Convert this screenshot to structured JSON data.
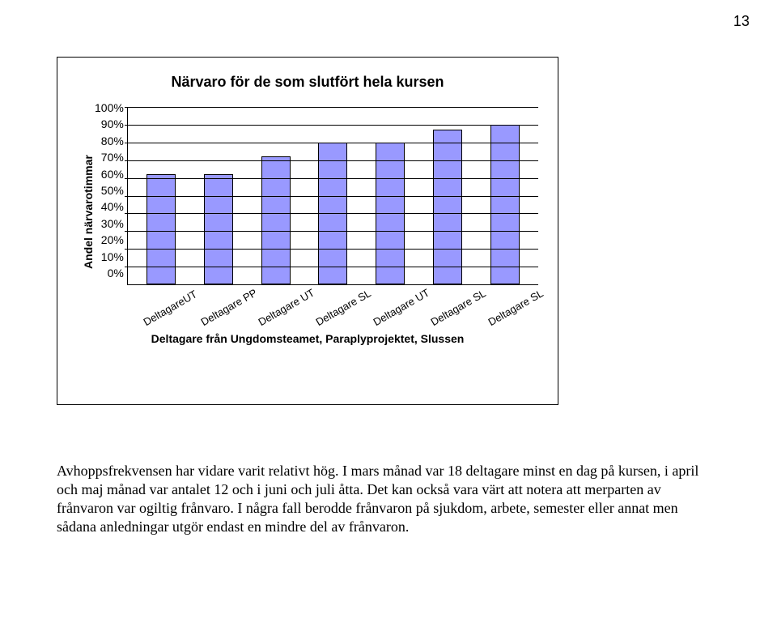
{
  "page_number": "13",
  "chart": {
    "type": "bar",
    "title": "Närvaro för de som slutfört hela kursen",
    "y_axis_title": "Andel närvarotimmar",
    "x_axis_title": "Deltagare från Ungdomsteamet, Paraplyprojektet, Slussen",
    "ylim": [
      0,
      100
    ],
    "ytick_step": 10,
    "ytick_labels": [
      "100%",
      "90%",
      "80%",
      "70%",
      "60%",
      "50%",
      "40%",
      "30%",
      "20%",
      "10%",
      "0%"
    ],
    "categories": [
      "DeltagareUT",
      "Deltagare PP",
      "Deltagare UT",
      "Deltagare SL",
      "Deltagare UT",
      "Deltagare SL",
      "Deltagare SL"
    ],
    "values": [
      62,
      62,
      72,
      80,
      80,
      87,
      90
    ],
    "bar_color": "#9999ff",
    "bar_border": "#000000",
    "grid_color": "#000000",
    "background_color": "#ffffff",
    "frame_border": "#000000",
    "title_fontsize": 18,
    "axis_title_fontsize": 14,
    "tick_fontsize": 14
  },
  "body_text": "Avhoppsfrekvensen har vidare varit relativt hög. I mars månad var 18 deltagare minst en dag på kursen, i april och maj månad var antalet 12 och i juni och juli åtta. Det kan också vara värt att notera att merparten av frånvaron var ogiltig frånvaro. I några fall berodde frånvaron på sjukdom, arbete, semester eller annat men sådana anledningar utgör endast en mindre del av frånvaron."
}
